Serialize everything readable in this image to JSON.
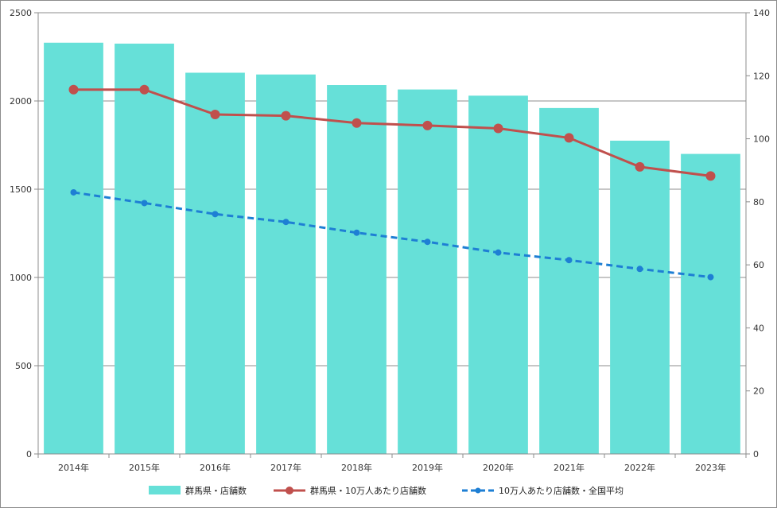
{
  "chart_data": {
    "type": "bar",
    "categories": [
      "2014年",
      "2015年",
      "2016年",
      "2017年",
      "2018年",
      "2019年",
      "2020年",
      "2021年",
      "2022年",
      "2023年"
    ],
    "series": [
      {
        "name": "群馬県・店舗数",
        "kind": "bar",
        "axis": "left",
        "color": "#66E0D8",
        "values": [
          2330,
          2325,
          2160,
          2150,
          2090,
          2065,
          2030,
          1960,
          1775,
          1700
        ]
      },
      {
        "name": "群馬県・10万人あたり店舗数",
        "kind": "line",
        "axis": "right",
        "color": "#C0504D",
        "style": "solid",
        "values": [
          115.6,
          115.6,
          107.7,
          107.3,
          105.0,
          104.2,
          103.3,
          100.3,
          91.1,
          88.2
        ]
      },
      {
        "name": "10万人あたり店舗数・全国平均",
        "kind": "line",
        "axis": "right",
        "color": "#1E7FD4",
        "style": "dashed",
        "values": [
          83.0,
          79.6,
          76.1,
          73.6,
          70.2,
          67.3,
          63.9,
          61.5,
          58.7,
          56.1
        ]
      }
    ],
    "y_left": {
      "ylim": [
        0,
        2500
      ],
      "ticks": [
        "0",
        "500",
        "1000",
        "1500",
        "2000",
        "2500"
      ]
    },
    "y_right": {
      "ylim": [
        0,
        140
      ],
      "ticks": [
        "0",
        "20",
        "40",
        "60",
        "80",
        "100",
        "120",
        "140"
      ]
    },
    "grid": true,
    "legend_position": "bottom",
    "title": "",
    "xlabel": "",
    "ylabel": ""
  }
}
